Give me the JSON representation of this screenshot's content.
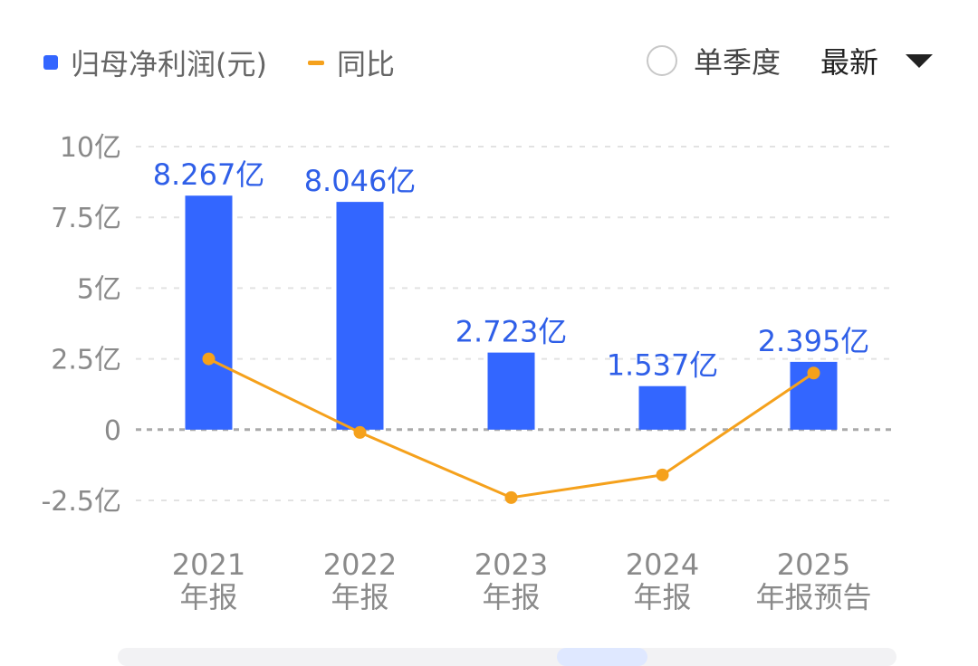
{
  "legend": {
    "bar_label": "归母净利润(元)",
    "line_label": "同比",
    "bar_color": "#3366ff",
    "line_color": "#f5a11c"
  },
  "controls": {
    "quarter_label": "单季度",
    "sort_label": "最新",
    "dropdown_icon": "caret-down-icon"
  },
  "chart_data": {
    "type": "bar",
    "categories": [
      [
        "2021",
        "年报"
      ],
      [
        "2022",
        "年报"
      ],
      [
        "2023",
        "年报"
      ],
      [
        "2024",
        "年报"
      ],
      [
        "2025",
        "年报预告"
      ]
    ],
    "series": [
      {
        "name": "归母净利润(元)",
        "type": "bar",
        "values": [
          8.267,
          8.046,
          2.723,
          1.537,
          2.395
        ],
        "labels": [
          "8.267亿",
          "8.046亿",
          "2.723亿",
          "1.537亿",
          "2.395亿"
        ],
        "color": "#3366ff"
      },
      {
        "name": "同比",
        "type": "line",
        "values": [
          2.5,
          -0.1,
          -2.4,
          -1.6,
          2.0
        ],
        "color": "#f5a11c"
      }
    ],
    "yticks": [
      10,
      7.5,
      5,
      2.5,
      0,
      -2.5
    ],
    "ytick_labels": [
      "10亿",
      "7.5亿",
      "5亿",
      "2.5亿",
      "0",
      "-2.5亿"
    ],
    "ylim": [
      -2.5,
      10
    ],
    "grid": true
  }
}
